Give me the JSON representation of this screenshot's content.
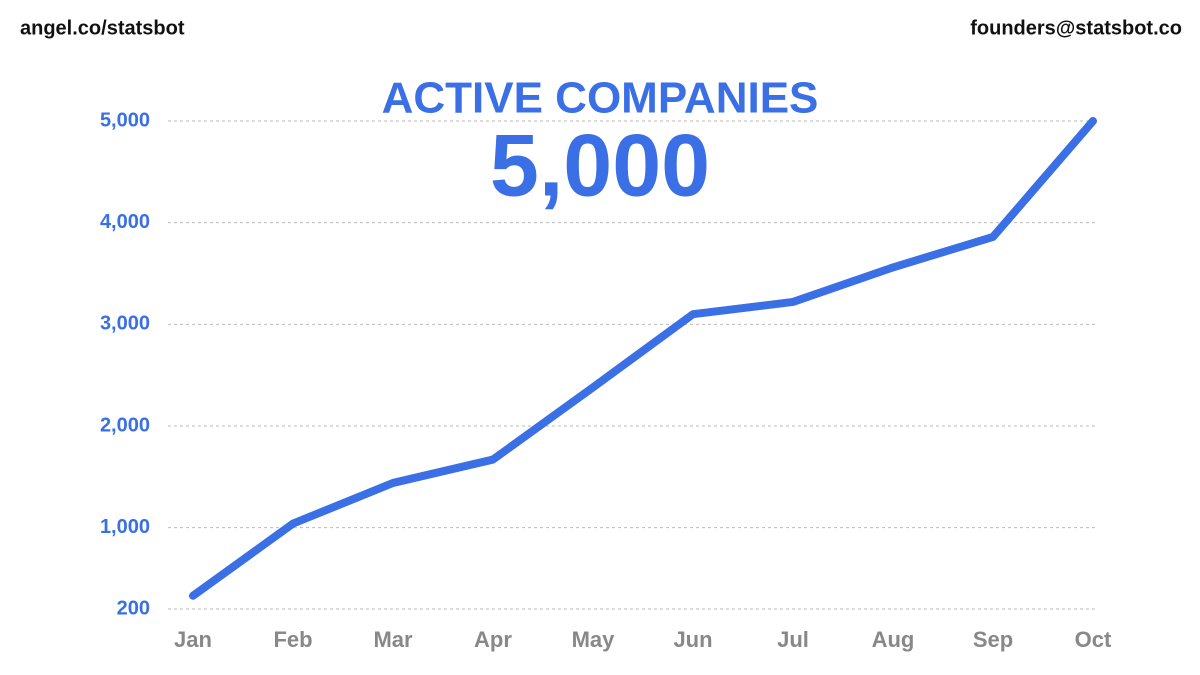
{
  "header": {
    "left": "angel.co/statsbot",
    "right": "founders@statsbot.co"
  },
  "chart_data": {
    "type": "line",
    "title": "ACTIVE COMPANIES",
    "headline": "5,000",
    "categories": [
      "Jan",
      "Feb",
      "Mar",
      "Apr",
      "May",
      "Jun",
      "Jul",
      "Aug",
      "Sep",
      "Oct"
    ],
    "series": [
      {
        "name": "Active companies",
        "color": "#3a6fe6",
        "values": [
          330,
          1040,
          1440,
          1670,
          2380,
          3100,
          3220,
          3560,
          3860,
          5000
        ]
      }
    ],
    "ylim": [
      200,
      5000
    ],
    "yticks": [
      200,
      {
        "value": 1000,
        "label": "1,000"
      },
      {
        "value": 2000,
        "label": "2,000"
      },
      {
        "value": 3000,
        "label": "3,000"
      },
      {
        "value": 4000,
        "label": "4,000"
      },
      {
        "value": 5000,
        "label": "5,000"
      }
    ],
    "grid": true
  }
}
